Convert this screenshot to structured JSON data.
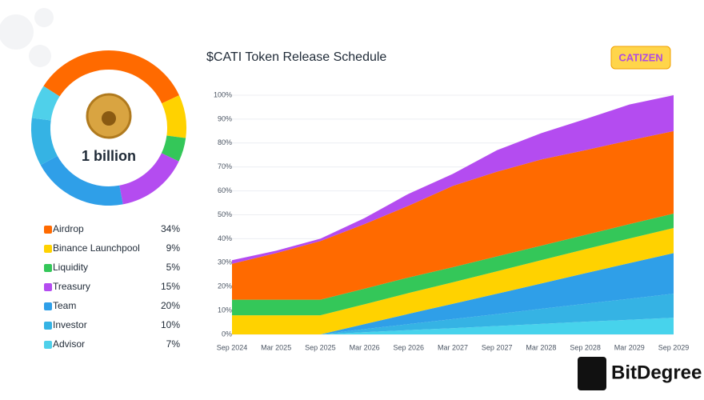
{
  "chart_data": [
    {
      "type": "donut",
      "center_label": "1 billion",
      "categories": [
        "Airdrop",
        "Binance Launchpool",
        "Liquidity",
        "Treasury",
        "Team",
        "Investor",
        "Advisor"
      ],
      "values": [
        34,
        9,
        5,
        15,
        20,
        10,
        7
      ],
      "value_labels": [
        "34%",
        "9%",
        "5%",
        "15%",
        "20%",
        "10%",
        "7%"
      ],
      "colors": [
        "#ff6a00",
        "#ffd200",
        "#34c759",
        "#b44cf0",
        "#2f9fe8",
        "#35b3e4",
        "#4fd0ea"
      ]
    },
    {
      "type": "stacked_area",
      "title": "$CATI Token Release Schedule",
      "x": [
        "Sep 2024",
        "Mar 2025",
        "Sep 2025",
        "Mar 2026",
        "Sep 2026",
        "Mar 2027",
        "Sep 2027",
        "Mar 2028",
        "Sep 2028",
        "Mar 2029",
        "Sep 2029"
      ],
      "series": [
        {
          "name": "Advisor",
          "color": "#47d3ec",
          "values": [
            0,
            0,
            0,
            0.9,
            1.8,
            2.6,
            3.5,
            4.4,
            5.3,
            6.1,
            7
          ]
        },
        {
          "name": "Investor",
          "color": "#35b3e4",
          "values": [
            0,
            0,
            0,
            1.3,
            2.5,
            3.8,
            5,
            6.3,
            7.5,
            8.8,
            10
          ]
        },
        {
          "name": "Team",
          "color": "#2f9fe8",
          "values": [
            0,
            0,
            0,
            2.1,
            4.3,
            6.4,
            8.5,
            10.6,
            12.8,
            14.9,
            17
          ]
        },
        {
          "name": "Binance Launchpool",
          "color": "#ffd200",
          "values": [
            8,
            8,
            8,
            8.3,
            8.7,
            9,
            9.4,
            9.7,
            10,
            10.3,
            10.5
          ]
        },
        {
          "name": "Liquidity",
          "color": "#34c759",
          "values": [
            6.5,
            6.5,
            6.5,
            6.5,
            6.5,
            6.3,
            6.2,
            6.1,
            6,
            6,
            6
          ]
        },
        {
          "name": "Airdrop",
          "color": "#ff6a00",
          "values": [
            15,
            19.5,
            24.5,
            27,
            30,
            34,
            35.4,
            36,
            35.4,
            35,
            34.5
          ]
        },
        {
          "name": "Treasury",
          "color": "#b44cf0",
          "values": [
            1.5,
            1,
            1,
            2.5,
            5,
            5,
            9,
            11,
            13,
            15,
            15
          ]
        }
      ],
      "ylim": [
        0,
        100
      ],
      "yticks": [
        {
          "value": 0,
          "label": "0%"
        },
        {
          "value": 10,
          "label": "10%"
        },
        {
          "value": 20,
          "label": "20%"
        },
        {
          "value": 30,
          "label": "30%"
        },
        {
          "value": 40,
          "label": "40%"
        },
        {
          "value": 50,
          "label": "50%"
        },
        {
          "value": 60,
          "label": "60%"
        },
        {
          "value": 70,
          "label": "70%"
        },
        {
          "value": 80,
          "label": "80%"
        },
        {
          "value": 90,
          "label": "90%"
        },
        {
          "value": 100,
          "label": "100%"
        }
      ],
      "grid": true
    }
  ],
  "branding": {
    "logo": "CATIZEN",
    "watermark": "BitDegree"
  }
}
